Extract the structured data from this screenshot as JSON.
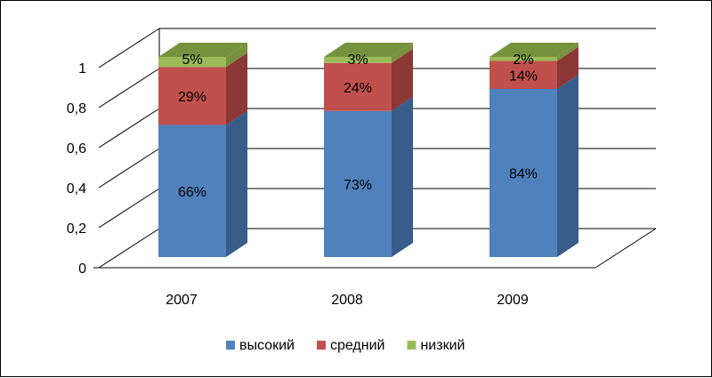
{
  "chart_data": {
    "type": "bar",
    "stacked": true,
    "percent_stacked": true,
    "three_d": true,
    "categories": [
      "2007",
      "2008",
      "2009"
    ],
    "series": [
      {
        "name": "высокий",
        "values": [
          0.66,
          0.73,
          0.84
        ],
        "labels": [
          "66%",
          "73%",
          "84%"
        ],
        "color": "#4F81BD",
        "side_color": "#385D8A",
        "top_color": "#7F9FD0"
      },
      {
        "name": "средний",
        "values": [
          0.29,
          0.24,
          0.14
        ],
        "labels": [
          "29%",
          "24%",
          "14%"
        ],
        "color": "#C0504D",
        "side_color": "#8C3836",
        "top_color": "#D4827F"
      },
      {
        "name": "низкий",
        "values": [
          0.05,
          0.03,
          0.02
        ],
        "labels": [
          "5%",
          "3%",
          "2%"
        ],
        "color": "#9BBB59",
        "side_color": "#76923C",
        "top_color": "#76923C"
      }
    ],
    "y_ticks": [
      "0",
      "0,2",
      "0,4",
      "0,6",
      "0,8",
      "1"
    ],
    "ylim": [
      0,
      1
    ],
    "grid": true,
    "legend_position": "bottom",
    "title": "",
    "xlabel": "",
    "ylabel": ""
  }
}
